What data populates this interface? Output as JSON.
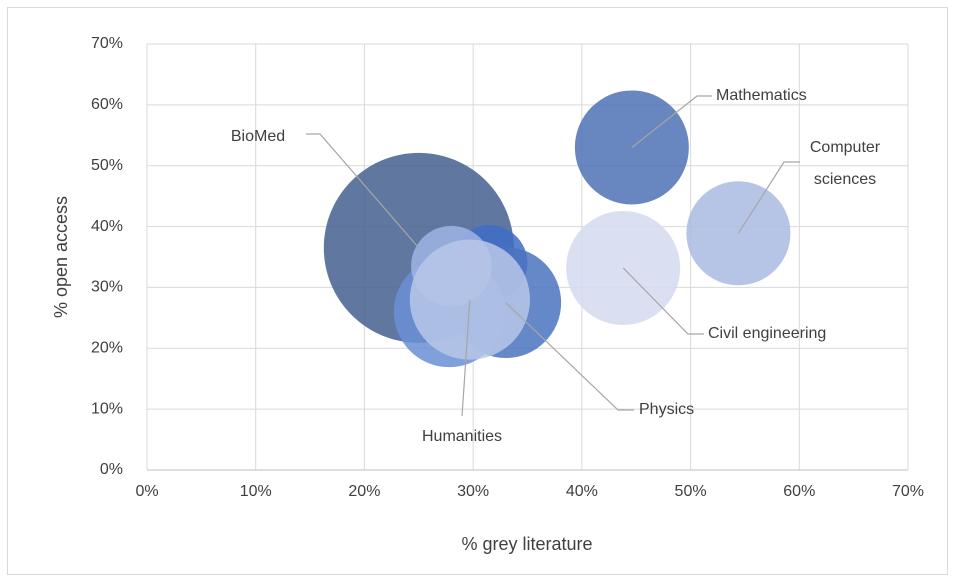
{
  "chart_data": {
    "type": "bubble",
    "x_label": "% grey literature",
    "y_label": "% open access",
    "xlim": [
      0,
      70
    ],
    "ylim": [
      0,
      70
    ],
    "xticks": [
      {
        "value": 0,
        "label": "0%"
      },
      {
        "value": 10,
        "label": "10%"
      },
      {
        "value": 20,
        "label": "20%"
      },
      {
        "value": 30,
        "label": "30%"
      },
      {
        "value": 40,
        "label": "40%"
      },
      {
        "value": 50,
        "label": "50%"
      },
      {
        "value": 60,
        "label": "60%"
      },
      {
        "value": 70,
        "label": "70%"
      }
    ],
    "yticks": [
      {
        "value": 0,
        "label": "0%"
      },
      {
        "value": 10,
        "label": "10%"
      },
      {
        "value": 20,
        "label": "20%"
      },
      {
        "value": 30,
        "label": "30%"
      },
      {
        "value": 40,
        "label": "40%"
      },
      {
        "value": 50,
        "label": "50%"
      },
      {
        "value": 60,
        "label": "60%"
      },
      {
        "value": 70,
        "label": "70%"
      }
    ],
    "grid": true,
    "points": [
      {
        "name": "BioMed",
        "color": "#44608f",
        "x": 25,
        "y": 36.5,
        "size": 100
      },
      {
        "name": null,
        "color": "#3f6cc6",
        "x": 31.5,
        "y": 34,
        "size": 16
      },
      {
        "name": "Physics",
        "color": "#4a73bf",
        "x": 33,
        "y": 27.5,
        "size": 34
      },
      {
        "name": null,
        "color": "#6a8fd6",
        "x": 27.8,
        "y": 26,
        "size": 34
      },
      {
        "name": null,
        "color": "#9fb4e3",
        "x": 28,
        "y": 33.5,
        "size": 18
      },
      {
        "name": "Humanities",
        "color": "#b8c7e8",
        "x": 29.7,
        "y": 28,
        "size": 40
      },
      {
        "name": "Mathematics",
        "color": "#4d72b6",
        "x": 44.6,
        "y": 53,
        "size": 36
      },
      {
        "name": "Civil engineering",
        "color": "#d3dbee",
        "x": 43.8,
        "y": 33.2,
        "size": 36
      },
      {
        "name": "Computer sciences",
        "color": "#a9bae2",
        "x": 54.4,
        "y": 38.9,
        "size": 30
      }
    ]
  }
}
